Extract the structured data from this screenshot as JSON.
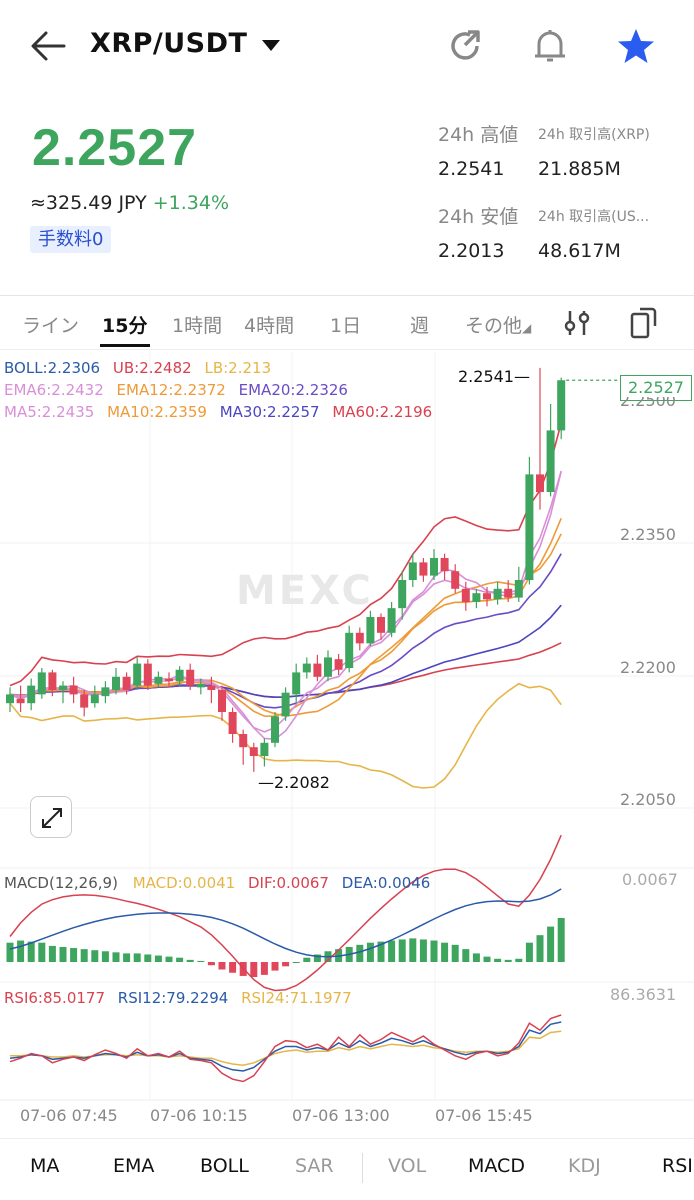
{
  "header": {
    "pair": "XRP/USDT",
    "icons": [
      "back-arrow-icon",
      "share-icon",
      "bell-icon",
      "star-icon"
    ]
  },
  "ticker": {
    "price": "2.2527",
    "jpy": "≈325.49 JPY",
    "change": "+1.34%",
    "fee_badge": "手数料0",
    "high_label": "24h 高値",
    "high_value": "2.2541",
    "vol_xrp_label": "24h 取引高(XRP)",
    "vol_xrp_value": "21.885M",
    "low_label": "24h 安値",
    "low_value": "2.2013",
    "vol_usdt_label": "24h 取引高(US...",
    "vol_usdt_value": "48.617M"
  },
  "timeframes": {
    "line": "ライン",
    "m15": "15分",
    "h1": "1時間",
    "h4": "4時間",
    "d1": "1日",
    "week": "週",
    "more": "その他"
  },
  "indicators": {
    "boll": "BOLL:2.2306",
    "ub": "UB:2.2482",
    "lb": "LB:2.213",
    "ema6": "EMA6:2.2432",
    "ema12": "EMA12:2.2372",
    "ema20": "EMA20:2.2326",
    "ma5": "MA5:2.2435",
    "ma10": "MA10:2.2359",
    "ma30": "MA30:2.2257",
    "ma60": "MA60:2.2196",
    "macd_title": "MACD(12,26,9)",
    "macd": "MACD:0.0041",
    "dif": "DIF:0.0067",
    "dea": "DEA:0.0046",
    "rsi6": "RSI6:85.0177",
    "rsi12": "RSI12:79.2294",
    "rsi24": "RSI24:71.1977"
  },
  "chart_labels": {
    "high_marker": "2.2541",
    "low_marker": "2.2082",
    "current_price": "2.2527",
    "watermark": "MEXC",
    "y_partial": "2.2500",
    "y_2350": "2.2350",
    "y_2200": "2.2200",
    "y_2050": "2.2050",
    "macd_axis": "0.0067",
    "rsi_axis": "86.3631",
    "x_ticks": [
      "07-06 07:45",
      "07-06 10:15",
      "07-06 13:00",
      "07-06 15:45"
    ]
  },
  "bottom_tabs": [
    "MA",
    "EMA",
    "BOLL",
    "SAR",
    "VOL",
    "MACD",
    "KDJ",
    "RSI"
  ],
  "colors": {
    "up": "#3ea55e",
    "down": "#e0475a",
    "accent": "#2a5cf0"
  },
  "chart_data": {
    "type": "candlestick",
    "x_ticks": [
      "07-06 07:45",
      "07-06 10:15",
      "07-06 13:00",
      "07-06 15:45"
    ],
    "ylim": [
      2.2,
      2.252
    ],
    "y_ticks": [
      2.235,
      2.22,
      2.205
    ],
    "high": 2.2541,
    "low": 2.2082,
    "last": 2.2527,
    "candles": [
      [
        2.216,
        2.217,
        2.2178,
        2.215
      ],
      [
        2.2165,
        2.216,
        2.218,
        2.215
      ],
      [
        2.216,
        2.218,
        2.2188,
        2.2152
      ],
      [
        2.217,
        2.2195,
        2.22,
        2.2165
      ],
      [
        2.2195,
        2.2175,
        2.2198,
        2.2168
      ],
      [
        2.2175,
        2.218,
        2.2185,
        2.216
      ],
      [
        2.218,
        2.217,
        2.219,
        2.216
      ],
      [
        2.217,
        2.2155,
        2.2175,
        2.2145
      ],
      [
        2.216,
        2.217,
        2.218,
        2.2155
      ],
      [
        2.2168,
        2.2178,
        2.2185,
        2.216
      ],
      [
        2.2175,
        2.219,
        2.22,
        2.217
      ],
      [
        2.219,
        2.2175,
        2.2195,
        2.217
      ],
      [
        2.218,
        2.2205,
        2.2212,
        2.2175
      ],
      [
        2.2205,
        2.218,
        2.221,
        2.2175
      ],
      [
        2.2182,
        2.219,
        2.2196,
        2.2178
      ],
      [
        2.2188,
        2.2185,
        2.2195,
        2.2178
      ],
      [
        2.2185,
        2.2198,
        2.2202,
        2.218
      ],
      [
        2.2198,
        2.218,
        2.2205,
        2.2175
      ],
      [
        2.2178,
        2.2182,
        2.2188,
        2.217
      ],
      [
        2.218,
        2.2175,
        2.219,
        2.216
      ],
      [
        2.2175,
        2.215,
        2.218,
        2.214
      ],
      [
        2.215,
        2.2125,
        2.2155,
        2.2115
      ],
      [
        2.2125,
        2.211,
        2.213,
        2.209
      ],
      [
        2.211,
        2.21,
        2.2115,
        2.2082
      ],
      [
        2.21,
        2.2115,
        2.212,
        2.2088
      ],
      [
        2.2115,
        2.2145,
        2.215,
        2.211
      ],
      [
        2.2145,
        2.2172,
        2.2178,
        2.214
      ],
      [
        2.217,
        2.2195,
        2.2205,
        2.216
      ],
      [
        2.2195,
        2.2205,
        2.2212,
        2.2188
      ],
      [
        2.2205,
        2.219,
        2.2215,
        2.2185
      ],
      [
        2.219,
        2.2212,
        2.222,
        2.2185
      ],
      [
        2.221,
        2.2198,
        2.2216,
        2.2192
      ],
      [
        2.22,
        2.224,
        2.2248,
        2.2195
      ],
      [
        2.224,
        2.2228,
        2.2246,
        2.222
      ],
      [
        2.2228,
        2.2258,
        2.2265,
        2.2225
      ],
      [
        2.2258,
        2.224,
        2.2262,
        2.2232
      ],
      [
        2.224,
        2.2268,
        2.2275,
        2.2235
      ],
      [
        2.2268,
        2.23,
        2.231,
        2.2255
      ],
      [
        2.23,
        2.232,
        2.233,
        2.2292
      ],
      [
        2.232,
        2.2305,
        2.2325,
        2.2298
      ],
      [
        2.2305,
        2.2325,
        2.2335,
        2.23
      ],
      [
        2.2325,
        2.231,
        2.233,
        2.23
      ],
      [
        2.231,
        2.229,
        2.2318,
        2.2285
      ],
      [
        2.229,
        2.2275,
        2.2298,
        2.2265
      ],
      [
        2.2275,
        2.2285,
        2.229,
        2.2268
      ],
      [
        2.2285,
        2.2278,
        2.2292,
        2.227
      ],
      [
        2.2278,
        2.229,
        2.2298,
        2.2272
      ],
      [
        2.229,
        2.228,
        2.23,
        2.2275
      ],
      [
        2.228,
        2.23,
        2.2315,
        2.2275
      ],
      [
        2.23,
        2.242,
        2.244,
        2.2295
      ],
      [
        2.242,
        2.24,
        2.2541,
        2.238
      ],
      [
        2.24,
        2.247,
        2.25,
        2.2395
      ],
      [
        2.247,
        2.2527,
        2.253,
        2.246
      ]
    ],
    "macd_hist": [
      0.0018,
      0.002,
      0.0019,
      0.0018,
      0.0015,
      0.0014,
      0.0013,
      0.0012,
      0.0011,
      0.001,
      0.0009,
      0.0008,
      0.0008,
      0.0007,
      0.0006,
      0.0005,
      0.0004,
      0.0002,
      0.0001,
      -0.0003,
      -0.0007,
      -0.001,
      -0.0013,
      -0.0014,
      -0.0012,
      -0.0008,
      -0.0004,
      0.0,
      0.0004,
      0.0007,
      0.001,
      0.0012,
      0.0014,
      0.0016,
      0.0018,
      0.0019,
      0.002,
      0.0021,
      0.0022,
      0.0021,
      0.002,
      0.0018,
      0.0016,
      0.0012,
      0.0008,
      0.0005,
      0.0003,
      0.0002,
      0.0003,
      0.0018,
      0.0025,
      0.0033,
      0.0041
    ],
    "rsi6": [
      45,
      48,
      52,
      50,
      44,
      47,
      49,
      46,
      51,
      55,
      52,
      48,
      56,
      50,
      52,
      49,
      54,
      47,
      46,
      44,
      35,
      30,
      28,
      33,
      45,
      58,
      63,
      62,
      57,
      60,
      55,
      66,
      58,
      68,
      60,
      64,
      70,
      66,
      62,
      67,
      60,
      55,
      50,
      47,
      52,
      54,
      50,
      52,
      61,
      78,
      72,
      82,
      85
    ],
    "rsi12": [
      48,
      49,
      51,
      50,
      47,
      48,
      49,
      48,
      50,
      52,
      51,
      49,
      53,
      50,
      51,
      49,
      52,
      48,
      47,
      46,
      41,
      38,
      37,
      40,
      47,
      54,
      58,
      58,
      55,
      57,
      55,
      61,
      57,
      63,
      58,
      61,
      65,
      63,
      60,
      63,
      59,
      56,
      53,
      51,
      53,
      54,
      52,
      53,
      58,
      72,
      69,
      77,
      79
    ],
    "rsi24": [
      50,
      50,
      51,
      50,
      49,
      49,
      50,
      49,
      50,
      51,
      51,
      50,
      51,
      50,
      50,
      49,
      50,
      49,
      48,
      48,
      45,
      43,
      42,
      44,
      48,
      52,
      54,
      55,
      53,
      54,
      54,
      57,
      55,
      58,
      56,
      58,
      60,
      59,
      58,
      59,
      57,
      56,
      54,
      53,
      54,
      54,
      53,
      54,
      56,
      66,
      65,
      70,
      71
    ]
  }
}
